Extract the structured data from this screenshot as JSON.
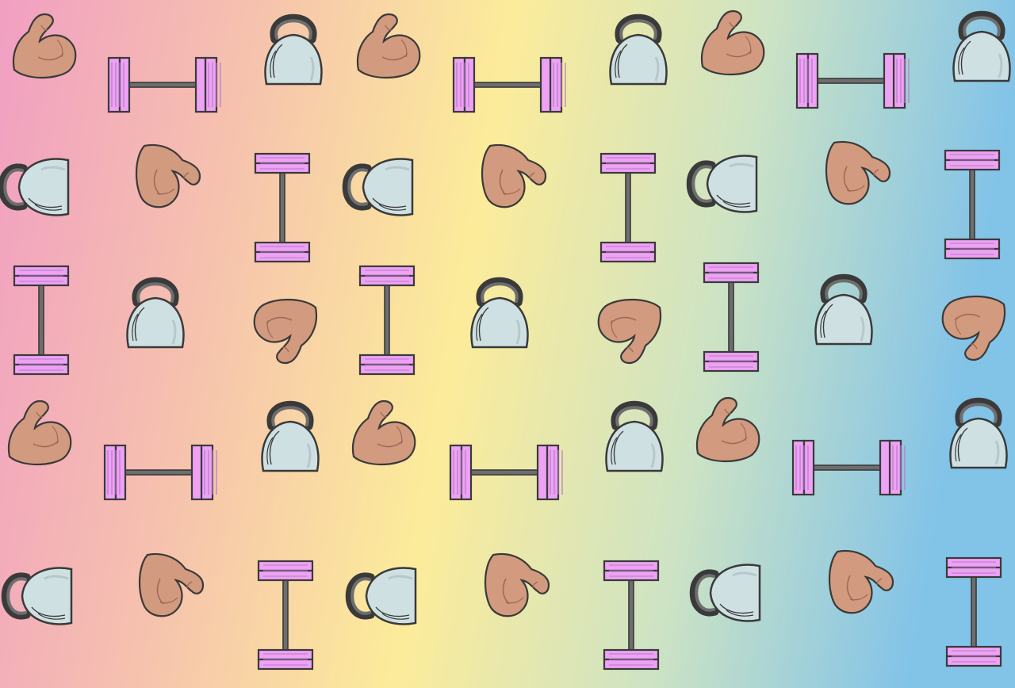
{
  "background": {
    "gradient_colors": [
      "#f19fc2",
      "#f6c2ae",
      "#fcec9a",
      "#cde3c4",
      "#82c3e8"
    ]
  },
  "icon_colors": {
    "outline": "#3a3a3a",
    "bar": "#6e6e6e",
    "plate": "#eea2f4",
    "plate_line": "#b77ac8",
    "kettlebell": "#cfe0e2",
    "kettlebell_shade": "#b6c8cc",
    "arm": "#d29a7f",
    "arm_line": "#9a6a58"
  },
  "pattern": {
    "icon_names": [
      "flexed-arm-icon",
      "barbell-icon",
      "kettlebell-icon",
      "dumbbell-icon"
    ]
  }
}
